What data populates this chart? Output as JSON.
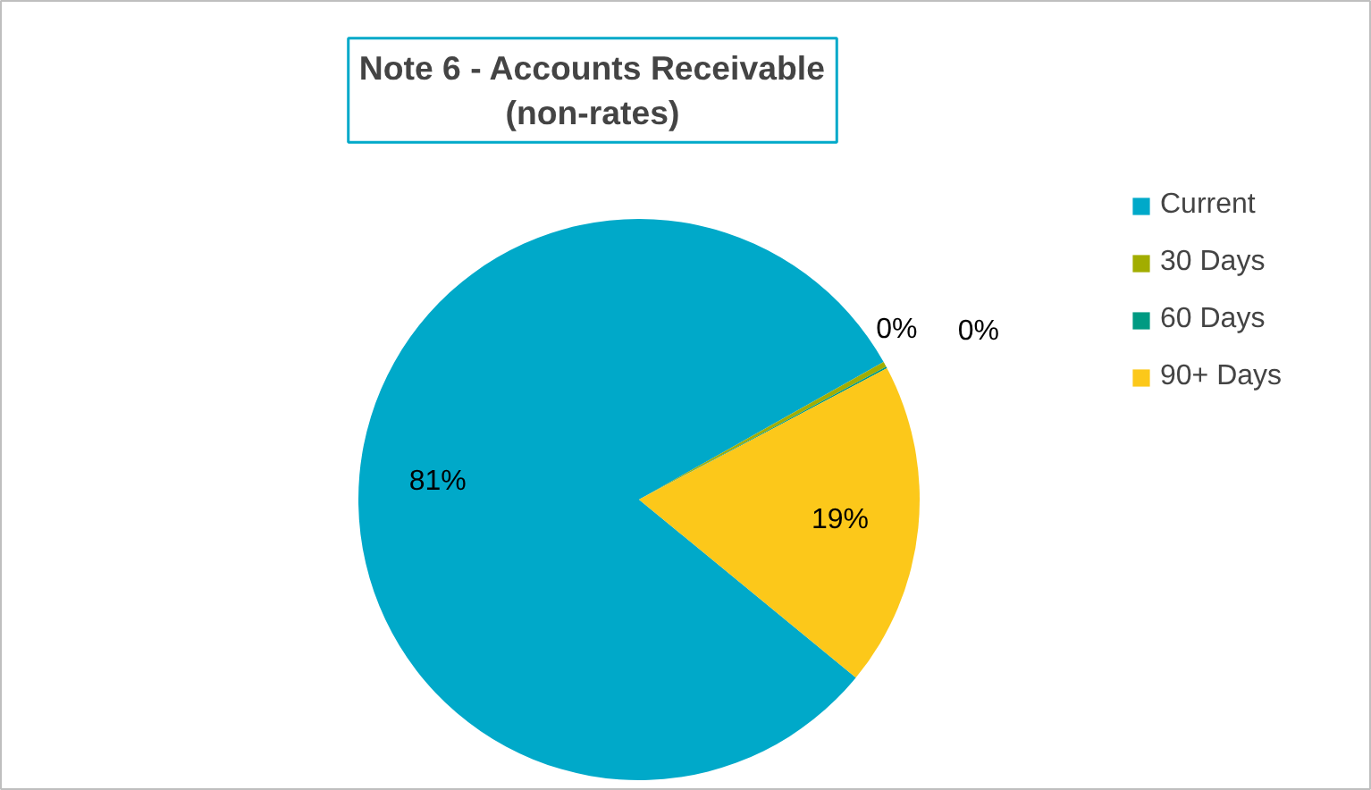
{
  "chart_data": {
    "type": "pie",
    "title": "Note 6 - Accounts Receivable (non-rates)",
    "categories": [
      "Current",
      "30 Days",
      "60 Days",
      "90+ Days"
    ],
    "values": [
      80.9,
      0.3,
      0.1,
      18.7
    ],
    "colors": [
      "#00a9c9",
      "#a2ad00",
      "#009a82",
      "#fcc81a"
    ],
    "value_labels": [
      "81%",
      "0%",
      "0%",
      "19%"
    ],
    "legend": "right"
  }
}
